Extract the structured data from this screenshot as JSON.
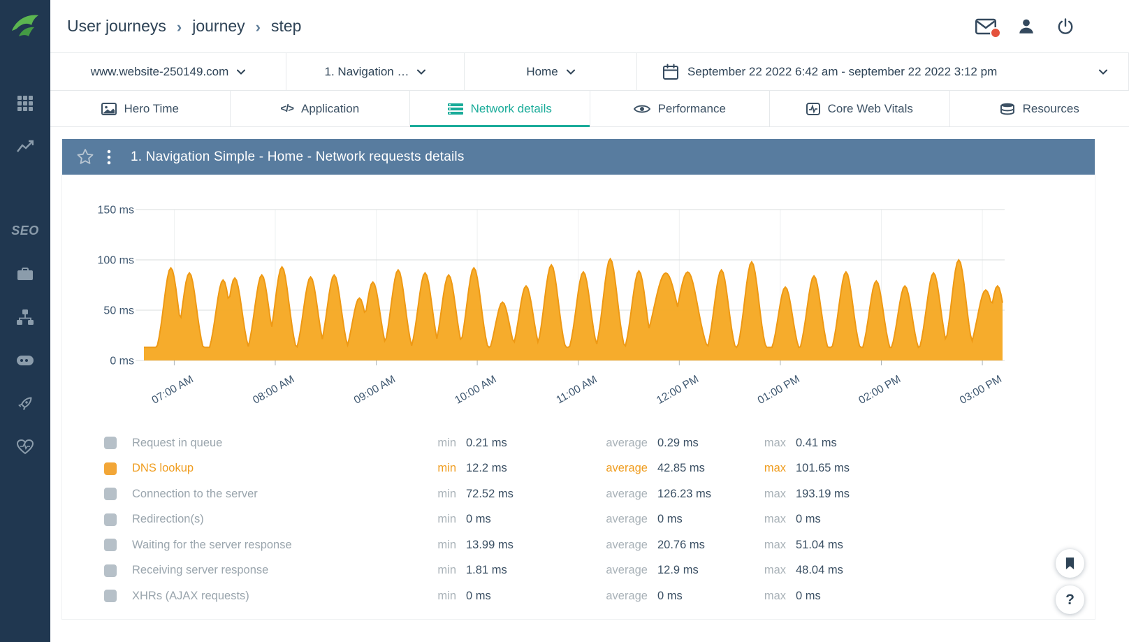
{
  "colors": {
    "accent_teal": "#19ab99",
    "series_orange": "#f6a821",
    "series_stroke": "#ee9914",
    "panel_header_blue": "#587c9f",
    "sidebar_bg": "#203750",
    "text_dark": "#2e4356",
    "badge_red": "#e4523c"
  },
  "sidebar": {
    "seo_label": "SEO",
    "items": [
      "dashboards",
      "monitors",
      "seo",
      "toolbox",
      "user-journeys",
      "servers",
      "launch",
      "health"
    ]
  },
  "header": {
    "breadcrumb": [
      "User journeys",
      "journey",
      "step"
    ],
    "separator": "›"
  },
  "filters": {
    "website": "www.website-250149.com",
    "journey": "1. Navigation …",
    "step": "Home",
    "date_range": "September 22 2022 6:42 am - september 22 2022 3:12 pm"
  },
  "tabs": [
    {
      "label": "Hero Time",
      "active": false
    },
    {
      "label": "Application",
      "active": false
    },
    {
      "label": "Network details",
      "active": true
    },
    {
      "label": "Performance",
      "active": false
    },
    {
      "label": "Core Web Vitals",
      "active": false
    },
    {
      "label": "Resources",
      "active": false
    }
  ],
  "panel": {
    "title": "1. Navigation Simple - Home - Network requests details"
  },
  "chart_data": {
    "type": "area",
    "title": "1. Navigation Simple - Home - Network requests details",
    "y_unit": "ms",
    "y_ticks": [
      {
        "v": 0,
        "label": "0 ms"
      },
      {
        "v": 50,
        "label": "50 ms"
      },
      {
        "v": 100,
        "label": "100 ms"
      },
      {
        "v": 150,
        "label": "150 ms"
      }
    ],
    "x_range_minutes": [
      0,
      510
    ],
    "x_ticks": [
      {
        "t": 18,
        "label": "07:00 AM"
      },
      {
        "t": 78,
        "label": "08:00 AM"
      },
      {
        "t": 138,
        "label": "09:00 AM"
      },
      {
        "t": 198,
        "label": "10:00 AM"
      },
      {
        "t": 258,
        "label": "11:00 AM"
      },
      {
        "t": 318,
        "label": "12:00 PM"
      },
      {
        "t": 378,
        "label": "01:00 PM"
      },
      {
        "t": 438,
        "label": "02:00 PM"
      },
      {
        "t": 498,
        "label": "03:00 PM"
      }
    ],
    "series": [
      {
        "name": "DNS lookup",
        "color": "#f6a821",
        "stroke": "#ee9914",
        "baseline_ms": 13,
        "min_ms": 12.2,
        "avg_ms": 42.85,
        "max_ms": 101.65,
        "peaks": [
          {
            "t": 16,
            "v": 92
          },
          {
            "t": 27,
            "v": 87
          },
          {
            "t": 47,
            "v": 80
          },
          {
            "t": 54,
            "v": 82
          },
          {
            "t": 70,
            "v": 85
          },
          {
            "t": 82,
            "v": 93
          },
          {
            "t": 99,
            "v": 83
          },
          {
            "t": 113,
            "v": 85
          },
          {
            "t": 128,
            "v": 62
          },
          {
            "t": 136,
            "v": 78
          },
          {
            "t": 151,
            "v": 90
          },
          {
            "t": 167,
            "v": 87
          },
          {
            "t": 181,
            "v": 85
          },
          {
            "t": 196,
            "v": 92
          },
          {
            "t": 213,
            "v": 58
          },
          {
            "t": 227,
            "v": 74
          },
          {
            "t": 242,
            "v": 95
          },
          {
            "t": 261,
            "v": 88
          },
          {
            "t": 277,
            "v": 101
          },
          {
            "t": 294,
            "v": 89
          },
          {
            "t": 310,
            "v": 87,
            "w": 7
          },
          {
            "t": 323,
            "v": 88,
            "w": 6
          },
          {
            "t": 343,
            "v": 90
          },
          {
            "t": 361,
            "v": 98
          },
          {
            "t": 381,
            "v": 73
          },
          {
            "t": 398,
            "v": 84
          },
          {
            "t": 417,
            "v": 88
          },
          {
            "t": 435,
            "v": 79
          },
          {
            "t": 452,
            "v": 74
          },
          {
            "t": 469,
            "v": 87
          },
          {
            "t": 484,
            "v": 100
          },
          {
            "t": 500,
            "v": 70,
            "w": 5
          },
          {
            "t": 507,
            "v": 74
          }
        ]
      }
    ]
  },
  "legend": {
    "col_min": "min",
    "col_avg": "average",
    "col_max": "max",
    "rows": [
      {
        "label": "Request in queue",
        "min": "0.21 ms",
        "avg": "0.29 ms",
        "max": "0.41 ms",
        "active": false
      },
      {
        "label": "DNS lookup",
        "min": "12.2 ms",
        "avg": "42.85 ms",
        "max": "101.65 ms",
        "active": true
      },
      {
        "label": "Connection to the server",
        "min": "72.52 ms",
        "avg": "126.23 ms",
        "max": "193.19 ms",
        "active": false
      },
      {
        "label": "Redirection(s)",
        "min": "0 ms",
        "avg": "0 ms",
        "max": "0 ms",
        "active": false
      },
      {
        "label": "Waiting for the server response",
        "min": "13.99 ms",
        "avg": "20.76 ms",
        "max": "51.04 ms",
        "active": false
      },
      {
        "label": "Receiving server response",
        "min": "1.81 ms",
        "avg": "12.9 ms",
        "max": "48.04 ms",
        "active": false
      },
      {
        "label": "XHRs (AJAX requests)",
        "min": "0 ms",
        "avg": "0 ms",
        "max": "0 ms",
        "active": false
      }
    ]
  },
  "fab": {
    "help_label": "?"
  }
}
